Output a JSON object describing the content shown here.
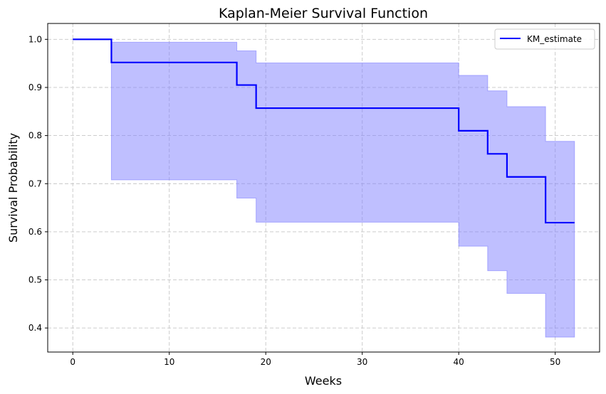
{
  "chart_data": {
    "type": "line",
    "title": "Kaplan-Meier Survival Function",
    "xlabel": "Weeks",
    "ylabel": "Survival Probability",
    "xlim": [
      -2.6,
      54.6
    ],
    "ylim": [
      0.35,
      1.033
    ],
    "xticks": [
      0,
      10,
      20,
      30,
      40,
      50
    ],
    "yticks": [
      0.4,
      0.5,
      0.6,
      0.7,
      0.8,
      0.9,
      1.0
    ],
    "grid": true,
    "grid_style": "dashed",
    "legend_position": "top-right",
    "series": [
      {
        "name": "KM_estimate",
        "color": "#0000ff",
        "step": "post",
        "x": [
          0,
          4,
          17,
          19,
          40,
          43,
          45,
          49,
          52
        ],
        "y": [
          1.0,
          0.952,
          0.905,
          0.857,
          0.81,
          0.762,
          0.714,
          0.619,
          0.619
        ]
      }
    ],
    "confidence_band": {
      "color": "#8080ff",
      "step": "post",
      "x": [
        0,
        4,
        17,
        19,
        40,
        43,
        45,
        49,
        52
      ],
      "upper": [
        1.0,
        0.994,
        0.976,
        0.951,
        0.925,
        0.893,
        0.86,
        0.788,
        0.788
      ],
      "lower": [
        1.0,
        0.708,
        0.67,
        0.62,
        0.57,
        0.519,
        0.472,
        0.381,
        0.381
      ]
    }
  }
}
